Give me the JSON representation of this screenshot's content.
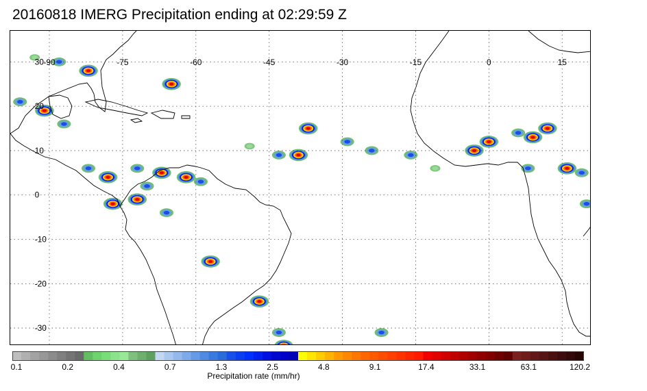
{
  "title": "20160818 IMERG Precipitation ending at 02:29:59 Z",
  "map": {
    "lon_labels": [
      "-90",
      "-75",
      "-60",
      "-45",
      "-30",
      "-15",
      "0",
      "15"
    ],
    "lon_values": [
      -90,
      -75,
      -60,
      -45,
      -30,
      -15,
      0,
      15
    ],
    "lat_labels": [
      "30",
      "20",
      "10",
      "0",
      "-10",
      "-20",
      "-30"
    ],
    "lat_values": [
      30,
      20,
      10,
      0,
      -10,
      -20,
      -30
    ],
    "lon_range": [
      -98,
      21
    ],
    "lat_range": [
      37,
      -34
    ],
    "gridlines": "dotted"
  },
  "colorbar": {
    "title": "Precipitation rate (mm/hr)",
    "tick_labels": [
      "0.1",
      "0.2",
      "0.4",
      "0.7",
      "1.3",
      "2.5",
      "4.8",
      "9.1",
      "17.4",
      "33.1",
      "63.1",
      "120.2"
    ],
    "colors": [
      "#bebebe",
      "#b0b0b0",
      "#a3a3a3",
      "#989898",
      "#8c8c8c",
      "#808080",
      "#747474",
      "#6a6a6a",
      "#63be63",
      "#6dd36d",
      "#78dd78",
      "#8ae38a",
      "#98e898",
      "#7fc07f",
      "#6eae6e",
      "#5ea05e",
      "#c3d8f0",
      "#aac8ee",
      "#92b8ec",
      "#7caaea",
      "#669ae6",
      "#508ae2",
      "#3a7ade",
      "#2a6ada",
      "#1a4ee8",
      "#0a3ef0",
      "#0030ff",
      "#0020f0",
      "#0010e0",
      "#0008d0",
      "#0000c8",
      "#0000b8",
      "#ffff00",
      "#ffe600",
      "#ffcc00",
      "#ffb300",
      "#ff9900",
      "#ff8800",
      "#ff7700",
      "#ff6600",
      "#ff5a00",
      "#ff4d00",
      "#ff4000",
      "#ff3300",
      "#ff2600",
      "#ff1a00",
      "#f00000",
      "#e00000",
      "#d00000",
      "#c00000",
      "#b00000",
      "#a00000",
      "#900000",
      "#800000",
      "#700000",
      "#600000",
      "#7a2020",
      "#6e1c1c",
      "#621818",
      "#561414",
      "#4a1010",
      "#3e0c0c",
      "#320808",
      "#260404"
    ]
  },
  "precip_cells": [
    {
      "lon": -93,
      "lat": 31,
      "level": "low"
    },
    {
      "lon": -88,
      "lat": 30,
      "level": "mid"
    },
    {
      "lon": -82,
      "lat": 28,
      "level": "high"
    },
    {
      "lon": -65,
      "lat": 25,
      "level": "high"
    },
    {
      "lon": -96,
      "lat": 21,
      "level": "mid"
    },
    {
      "lon": -91,
      "lat": 19,
      "level": "high"
    },
    {
      "lon": -87,
      "lat": 16,
      "level": "mid"
    },
    {
      "lon": -82,
      "lat": 6,
      "level": "mid"
    },
    {
      "lon": -78,
      "lat": 4,
      "level": "high"
    },
    {
      "lon": -72,
      "lat": 6,
      "level": "mid"
    },
    {
      "lon": -67,
      "lat": 5,
      "level": "high"
    },
    {
      "lon": -62,
      "lat": 4,
      "level": "high"
    },
    {
      "lon": -70,
      "lat": 2,
      "level": "mid"
    },
    {
      "lon": -72,
      "lat": -1,
      "level": "high"
    },
    {
      "lon": -77,
      "lat": -2,
      "level": "high"
    },
    {
      "lon": -66,
      "lat": -4,
      "level": "mid"
    },
    {
      "lon": -59,
      "lat": 3,
      "level": "mid"
    },
    {
      "lon": -49,
      "lat": 11,
      "level": "low"
    },
    {
      "lon": -43,
      "lat": 9,
      "level": "mid"
    },
    {
      "lon": -39,
      "lat": 9,
      "level": "high"
    },
    {
      "lon": -37,
      "lat": 15,
      "level": "high"
    },
    {
      "lon": -29,
      "lat": 12,
      "level": "mid"
    },
    {
      "lon": -24,
      "lat": 10,
      "level": "mid"
    },
    {
      "lon": -16,
      "lat": 9,
      "level": "mid"
    },
    {
      "lon": -11,
      "lat": 6,
      "level": "low"
    },
    {
      "lon": -3,
      "lat": 10,
      "level": "high"
    },
    {
      "lon": 0,
      "lat": 12,
      "level": "high"
    },
    {
      "lon": 6,
      "lat": 14,
      "level": "mid"
    },
    {
      "lon": 9,
      "lat": 13,
      "level": "high"
    },
    {
      "lon": 12,
      "lat": 15,
      "level": "high"
    },
    {
      "lon": 8,
      "lat": 6,
      "level": "mid"
    },
    {
      "lon": 16,
      "lat": 6,
      "level": "high"
    },
    {
      "lon": 19,
      "lat": 5,
      "level": "mid"
    },
    {
      "lon": 20,
      "lat": -2,
      "level": "mid"
    },
    {
      "lon": -57,
      "lat": -15,
      "level": "high"
    },
    {
      "lon": -47,
      "lat": -24,
      "level": "high"
    },
    {
      "lon": -43,
      "lat": -31,
      "level": "mid"
    },
    {
      "lon": -42,
      "lat": -34,
      "level": "high"
    },
    {
      "lon": -22,
      "lat": -31,
      "level": "mid"
    }
  ]
}
